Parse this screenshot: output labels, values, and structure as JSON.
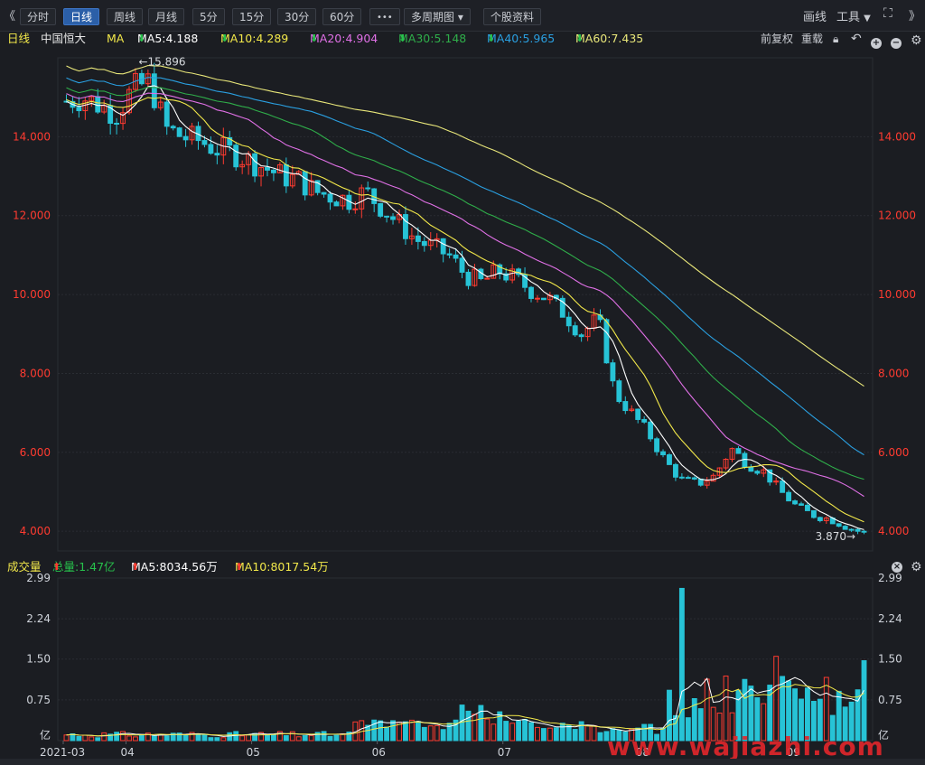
{
  "toolbar": {
    "collapse_left": "《",
    "periods": [
      "分时",
      "日线",
      "周线",
      "月线",
      "5分",
      "15分",
      "30分",
      "60分"
    ],
    "active_period": "日线",
    "more": "•••",
    "multi_period": "多周期图",
    "stock_info": "个股资料",
    "draw": "画线",
    "tools": "工具",
    "expand_right": "》"
  },
  "legend": {
    "period": "日线",
    "stock_name": "中国恒大",
    "indicator": "MA",
    "ma5": "MA5:4.188",
    "ma10": "MA10:4.289",
    "ma20": "MA20:4.904",
    "ma30": "MA30:5.148",
    "ma40": "MA40:5.965",
    "ma60": "MA60:7.435",
    "adjust": "前复权",
    "reset": "重载"
  },
  "colors": {
    "ma5": "#ffffff",
    "ma10": "#f2e84a",
    "ma20": "#e070e6",
    "ma30": "#2fae4a",
    "ma40": "#2a9fe0",
    "ma60": "#e9e77a",
    "up": "#ff3b30",
    "down": "#27c3d6",
    "axis_text": "#ff3b30"
  },
  "price_axis": {
    "ticks": [
      "14.000",
      "12.000",
      "10.000",
      "8.000",
      "6.000",
      "4.000"
    ],
    "high_label": "15.896",
    "low_label": "3.870"
  },
  "volume": {
    "label": "成交量",
    "total": "总量:1.47亿",
    "ma5": "MA5:8034.56万",
    "ma10": "MA10:8017.54万",
    "ticks": [
      "2.99",
      "2.24",
      "1.50",
      "0.75"
    ],
    "unit": "亿"
  },
  "date_axis": [
    "2021-03",
    "04",
    "05",
    "06",
    "07",
    "08",
    "09"
  ],
  "watermark": "www.wajiazhi.com",
  "chart_data": {
    "type": "candlestick",
    "x": [
      "2021-03",
      "04",
      "05",
      "06",
      "07",
      "08",
      "09"
    ],
    "ylim": [
      3.5,
      16.0
    ],
    "high": 15.896,
    "low": 3.87,
    "moving_averages": {
      "MA5": 4.188,
      "MA10": 4.289,
      "MA20": 4.904,
      "MA30": 5.148,
      "MA40": 5.965,
      "MA60": 7.435
    },
    "close_trend": [
      14.9,
      15.0,
      14.8,
      14.6,
      15.2,
      15.4,
      14.2,
      14.0,
      13.9,
      13.7,
      13.6,
      13.4,
      13.2,
      13.0,
      12.9,
      12.6,
      12.5,
      12.4,
      12.6,
      12.2,
      11.8,
      11.4,
      11.2,
      11.0,
      10.5,
      10.3,
      10.6,
      10.4,
      10.1,
      9.9,
      9.5,
      9.0,
      9.4,
      7.5,
      7.0,
      6.5,
      5.8,
      5.3,
      5.2,
      5.4,
      6.1,
      5.7,
      5.5,
      5.0,
      4.6,
      4.4,
      4.3,
      4.1,
      3.95
    ],
    "volume_ylim": [
      0,
      2.99
    ],
    "volume_unit": "亿",
    "volume_total": 1.47
  }
}
